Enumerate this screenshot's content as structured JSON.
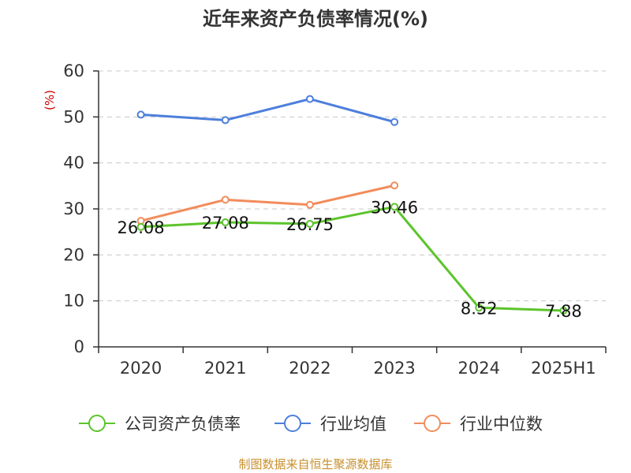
{
  "chart_data": {
    "type": "line",
    "title": "近年来资产负债率情况(%)",
    "unit_label": "(%)",
    "categories": [
      "2020",
      "2021",
      "2022",
      "2023",
      "2024",
      "2025H1"
    ],
    "ylim": [
      0,
      60
    ],
    "yticks": [
      0,
      10,
      20,
      30,
      40,
      50,
      60
    ],
    "grid": true,
    "legend_position": "bottom",
    "series": [
      {
        "name": "公司资产负债率",
        "color": "#5cc42b",
        "values": [
          26.08,
          27.08,
          26.75,
          30.46,
          8.52,
          7.88
        ],
        "labels": [
          "26.08",
          "27.08",
          "26.75",
          "30.46",
          "8.52",
          "7.88"
        ]
      },
      {
        "name": "行业均值",
        "color": "#4d7fdb",
        "values": [
          50.5,
          49.3,
          53.9,
          48.9,
          null,
          null
        ]
      },
      {
        "name": "行业中位数",
        "color": "#f28c5b",
        "values": [
          27.4,
          32.0,
          30.9,
          35.1,
          null,
          null
        ]
      }
    ],
    "source": "制图数据来自恒生聚源数据库"
  }
}
